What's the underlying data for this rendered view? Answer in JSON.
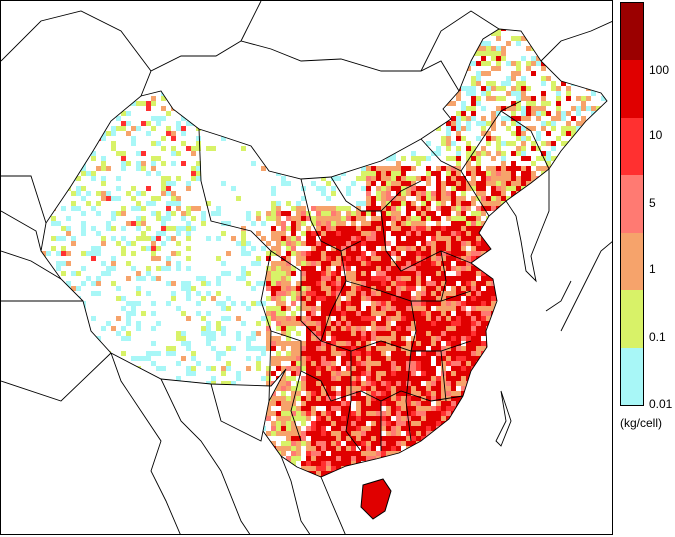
{
  "legend": {
    "unit": "(kg/cell)",
    "ticks": [
      "100",
      "10",
      "5",
      "1",
      "0.1",
      "0.01"
    ],
    "bins": [
      {
        "color": "#9b0000"
      },
      {
        "color": "#e00000"
      },
      {
        "color": "#ff3030"
      },
      {
        "color": "#ff7a72"
      },
      {
        "color": "#f6a36b"
      },
      {
        "color": "#d8f268"
      },
      {
        "color": "#a8f7f7"
      }
    ]
  },
  "map": {
    "land_color": "#ffffff",
    "border_color": "#000000"
  }
}
